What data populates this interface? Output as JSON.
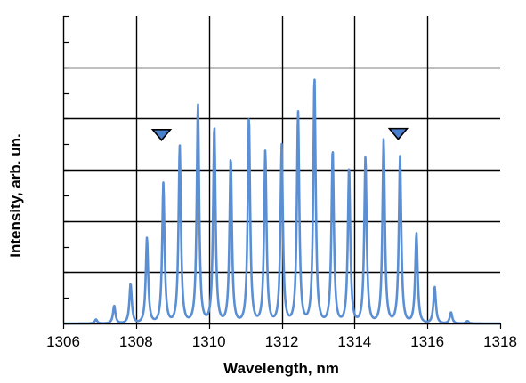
{
  "chart_data": {
    "type": "line",
    "title": "",
    "xlabel": "Wavelength, nm",
    "ylabel": "Intensity, arb. un.",
    "xlim": [
      1306,
      1318
    ],
    "ylim": [
      0,
      6
    ],
    "x_ticks": [
      1306,
      1308,
      1310,
      1312,
      1314,
      1316,
      1318
    ],
    "x_tick_labels": [
      "1306",
      "1308",
      "1310",
      "1312",
      "1314",
      "1316",
      "1318"
    ],
    "grid": true,
    "line_color": "#5b8fd4",
    "marker_color": "#4a7fcc",
    "series": [
      {
        "name": "",
        "peaks": [
          {
            "x": 1306.9,
            "y": 0.08
          },
          {
            "x": 1307.4,
            "y": 0.35
          },
          {
            "x": 1307.85,
            "y": 0.78
          },
          {
            "x": 1308.3,
            "y": 1.68
          },
          {
            "x": 1308.75,
            "y": 2.74
          },
          {
            "x": 1309.2,
            "y": 3.48
          },
          {
            "x": 1309.7,
            "y": 4.3
          },
          {
            "x": 1310.15,
            "y": 3.88
          },
          {
            "x": 1310.6,
            "y": 3.26
          },
          {
            "x": 1311.1,
            "y": 4.05
          },
          {
            "x": 1311.55,
            "y": 3.38
          },
          {
            "x": 1312.0,
            "y": 3.48
          },
          {
            "x": 1312.45,
            "y": 4.15
          },
          {
            "x": 1312.9,
            "y": 4.84
          },
          {
            "x": 1313.4,
            "y": 3.42
          },
          {
            "x": 1313.85,
            "y": 3.06
          },
          {
            "x": 1314.3,
            "y": 3.26
          },
          {
            "x": 1314.8,
            "y": 3.6
          },
          {
            "x": 1315.25,
            "y": 3.26
          },
          {
            "x": 1315.7,
            "y": 1.77
          },
          {
            "x": 1316.2,
            "y": 0.72
          },
          {
            "x": 1316.65,
            "y": 0.22
          },
          {
            "x": 1317.1,
            "y": 0.05
          }
        ]
      }
    ],
    "annotations": [
      {
        "type": "triangle-down",
        "x": 1308.7,
        "y": 3.68
      },
      {
        "type": "triangle-down",
        "x": 1315.2,
        "y": 3.7
      }
    ]
  }
}
